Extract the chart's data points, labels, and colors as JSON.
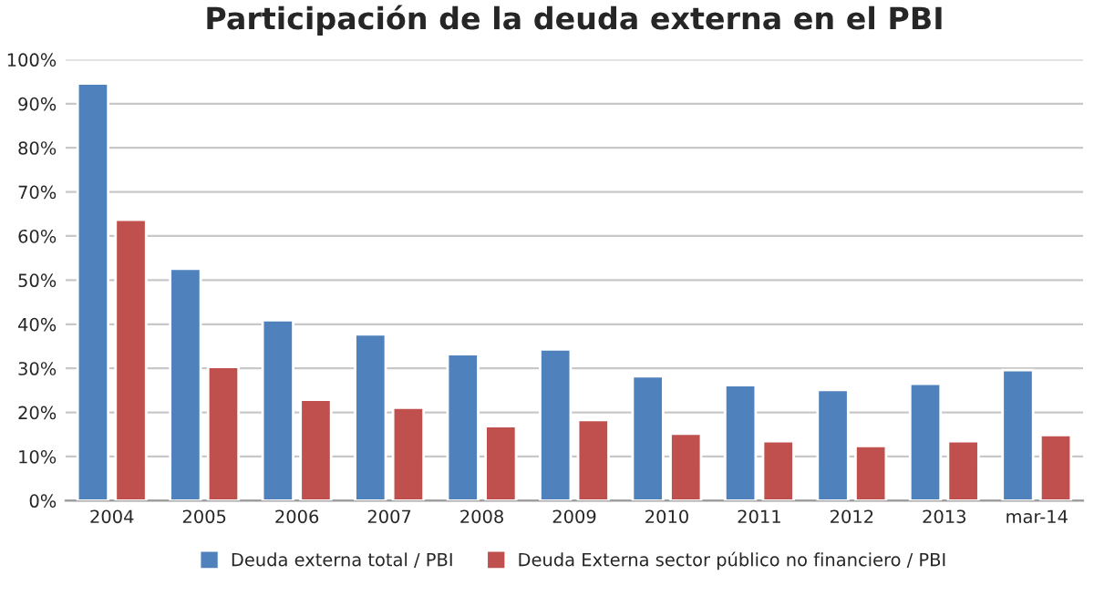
{
  "chart_data": {
    "type": "bar",
    "title": "Participación de la deuda externa en el PBI",
    "categories": [
      "2004",
      "2005",
      "2006",
      "2007",
      "2008",
      "2009",
      "2010",
      "2011",
      "2012",
      "2013",
      "mar-14"
    ],
    "series": [
      {
        "name": "Deuda externa total / PBI",
        "color": "#4f81bd",
        "values": [
          94.6,
          52.6,
          40.9,
          37.7,
          33.2,
          34.3,
          28.2,
          26.2,
          25.1,
          26.5,
          29.6
        ]
      },
      {
        "name": "Deuda Externa sector público no financiero / PBI",
        "color": "#c0504d",
        "values": [
          63.7,
          30.3,
          22.9,
          21.1,
          16.9,
          18.3,
          15.2,
          13.5,
          12.4,
          13.5,
          14.9
        ]
      }
    ],
    "ylim": [
      0,
      100
    ],
    "yticks": [
      {
        "value": 0,
        "label": "0%"
      },
      {
        "value": 10,
        "label": "10%"
      },
      {
        "value": 20,
        "label": "20%"
      },
      {
        "value": 30,
        "label": "30%"
      },
      {
        "value": 40,
        "label": "40%"
      },
      {
        "value": 50,
        "label": "50%"
      },
      {
        "value": 60,
        "label": "60%"
      },
      {
        "value": 70,
        "label": "70%"
      },
      {
        "value": 80,
        "label": "80%"
      },
      {
        "value": 90,
        "label": "90%"
      },
      {
        "value": 100,
        "label": "100%"
      }
    ],
    "grid": "y",
    "legend": "bottom"
  }
}
